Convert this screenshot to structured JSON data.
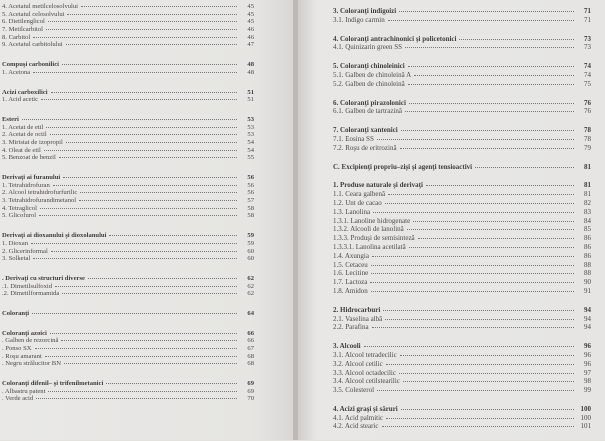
{
  "left_page": {
    "groups": [
      {
        "heading": null,
        "items": [
          {
            "text": "4. Acetatul metilcelosolvului",
            "page": "45"
          },
          {
            "text": "5. Acetatul celosolvului",
            "page": "45"
          },
          {
            "text": "6. Dietilenglicol",
            "page": "45"
          },
          {
            "text": "7. Metilcarbitol",
            "page": "46"
          },
          {
            "text": "8. Carbitol",
            "page": "46"
          },
          {
            "text": "9. Acetatul carbitolului",
            "page": "47"
          }
        ]
      },
      {
        "heading": {
          "text": "Compuşi carbonilici",
          "page": "48"
        },
        "items": [
          {
            "text": "1. Acetona",
            "page": "48"
          }
        ]
      },
      {
        "heading": {
          "text": "Acizi carboxilici",
          "page": "51"
        },
        "items": [
          {
            "text": "1. Acid acetic",
            "page": "51"
          }
        ]
      },
      {
        "heading": {
          "text": "Esteri",
          "page": "53"
        },
        "items": [
          {
            "text": "1. Acetat de etil",
            "page": "53"
          },
          {
            "text": "2. Acetat de octil",
            "page": "53"
          },
          {
            "text": "3. Miristat de izopropil",
            "page": "54"
          },
          {
            "text": "4. Oleat de etil",
            "page": "54"
          },
          {
            "text": "5. Benzoat de benzil",
            "page": "55"
          }
        ]
      },
      {
        "heading": {
          "text": "Derivaţi ai furanului",
          "page": "56"
        },
        "items": [
          {
            "text": "1. Tetrahidrofuran",
            "page": "56"
          },
          {
            "text": "2. Alcool tetrahidrofurfurilic",
            "page": "56"
          },
          {
            "text": "3. Tetrahidrofurandimetanol",
            "page": "57"
          },
          {
            "text": "4. Tetraglicol",
            "page": "58"
          },
          {
            "text": "5. Glicofurol",
            "page": "58"
          }
        ]
      },
      {
        "heading": {
          "text": "Derivaţi ai dioxanului şi dioxolanului",
          "page": "59"
        },
        "items": [
          {
            "text": "1. Dioxan",
            "page": "59"
          },
          {
            "text": "2. Glicerinformal",
            "page": "60"
          },
          {
            "text": "3. Solketal",
            "page": "60"
          }
        ]
      },
      {
        "heading": {
          "text": ". Derivaţi cu structuri diverse",
          "page": "62"
        },
        "items": [
          {
            "text": ".1. Dimetilsulfoxid",
            "page": "62"
          },
          {
            "text": ".2. Dimetilformamida",
            "page": "62"
          }
        ]
      },
      {
        "heading": {
          "text": "Coloranţi",
          "page": "64"
        },
        "items": []
      },
      {
        "heading": {
          "text": "Coloranţi azoici",
          "page": "66"
        },
        "items": [
          {
            "text": ". Galben de rezorcină",
            "page": "66"
          },
          {
            "text": ". Ponso SX",
            "page": "67"
          },
          {
            "text": ". Roşu amarant",
            "page": "68"
          },
          {
            "text": ". Negru strălucitor BN",
            "page": "68"
          }
        ]
      },
      {
        "heading": {
          "text": "Coloranţi difenil– şi trifenilmetanici",
          "page": "69"
        },
        "items": [
          {
            "text": ". Albastru patent",
            "page": "69"
          },
          {
            "text": ". Verde acid",
            "page": "70"
          }
        ]
      }
    ]
  },
  "right_page": {
    "groups": [
      {
        "heading": {
          "text": "3. Coloranţi indigoizi",
          "page": "71"
        },
        "items": [
          {
            "text": "3.1. Indigo carmin",
            "page": "71"
          }
        ]
      },
      {
        "heading": {
          "text": "4. Coloranţi antrachinonici şi policetonici",
          "page": "73"
        },
        "items": [
          {
            "text": "4.1. Quinizarin green SS",
            "page": "73"
          }
        ]
      },
      {
        "heading": {
          "text": "5. Coloranţi chinoleinici",
          "page": "74"
        },
        "items": [
          {
            "text": "5.1. Galben de chinoleină A",
            "page": "74"
          },
          {
            "text": "5.2. Galben de chinoleină",
            "page": "75"
          }
        ]
      },
      {
        "heading": {
          "text": "6. Coloranţi pirazolonici",
          "page": "76"
        },
        "items": [
          {
            "text": "6.1. Galben de tartrazină",
            "page": "76"
          }
        ]
      },
      {
        "heading": {
          "text": "7. Coloranţi xantenici",
          "page": "78"
        },
        "items": [
          {
            "text": "7.1. Eosina SS",
            "page": "78"
          },
          {
            "text": "7.2. Roşu de eritrozină",
            "page": "79"
          }
        ]
      },
      {
        "heading": {
          "text": "C. Excipienţi propriu–zişi şi agenţi tensioactivi",
          "page": "81"
        },
        "items": []
      },
      {
        "heading": {
          "text": "1. Produse naturale şi derivaţi",
          "page": "81"
        },
        "items": [
          {
            "text": "1.1. Ceara galbenă",
            "page": "81"
          },
          {
            "text": "1.2. Unt de cacao",
            "page": "82"
          },
          {
            "text": "1.3. Lanolina",
            "page": "83"
          },
          {
            "text": "1.3.1. Lanoline hidrogenate",
            "page": "84"
          },
          {
            "text": "1.3.2. Alcooli de lanolină",
            "page": "85"
          },
          {
            "text": "1.3.3. Produşi de semisinteză",
            "page": "86"
          },
          {
            "text": "1.3.3.1. Lanolina acetilată",
            "page": "86"
          },
          {
            "text": "1.4. Axungia",
            "page": "86"
          },
          {
            "text": "1.5. Cetaceu",
            "page": "88"
          },
          {
            "text": "1.6. Lecitine",
            "page": "88"
          },
          {
            "text": "1.7. Lactoza",
            "page": "90"
          },
          {
            "text": "1.8. Amidon",
            "page": "91"
          }
        ]
      },
      {
        "heading": {
          "text": "2. Hidrocarburi",
          "page": "94"
        },
        "items": [
          {
            "text": "2.1. Vaselina albă",
            "page": "94"
          },
          {
            "text": "2.2. Parafina",
            "page": "94"
          }
        ]
      },
      {
        "heading": {
          "text": "3. Alcooli",
          "page": "96"
        },
        "items": [
          {
            "text": "3.1. Alcool tetradecilic",
            "page": "96"
          },
          {
            "text": "3.2. Alcool cetilic",
            "page": "96"
          },
          {
            "text": "3.3. Alcool octadecilic",
            "page": "97"
          },
          {
            "text": "3.4. Alcool cetilstearilic",
            "page": "98"
          },
          {
            "text": "3.5. Colesterol",
            "page": "99"
          }
        ]
      },
      {
        "heading": {
          "text": "4. Acizi graşi şi săruri",
          "page": "100"
        },
        "items": [
          {
            "text": "4.1. Acid palmitic",
            "page": "100"
          },
          {
            "text": "4.2. Acid stearic",
            "page": "101"
          }
        ]
      }
    ]
  }
}
